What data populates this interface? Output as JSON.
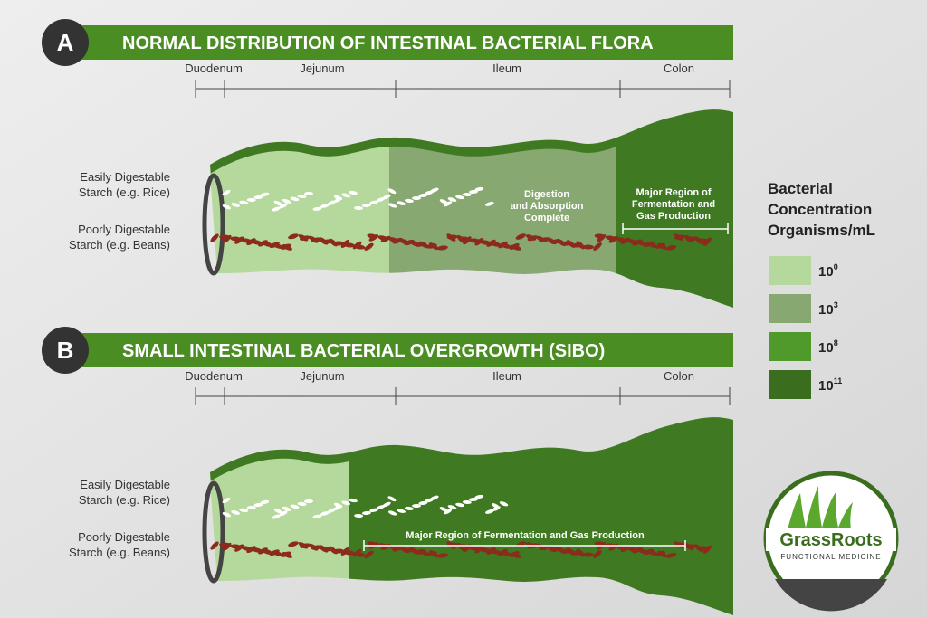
{
  "panels": [
    {
      "letter": "A",
      "title": "NORMAL DISTRIBUTION OF INTESTINAL BACTERIAL FLORA",
      "segments": [
        "Duodenum",
        "Jejunum",
        "Ileum",
        "Colon"
      ],
      "rice_label": [
        "Easily Digestable",
        "Starch (e.g. Rice)"
      ],
      "beans_label": [
        "Poorly Digestable",
        "Starch (e.g. Beans)"
      ],
      "notes": [
        [
          "Digestion",
          "and Absorption",
          "Complete"
        ],
        [
          "Major Region of",
          "Fermentation and",
          "Gas Production"
        ]
      ]
    },
    {
      "letter": "B",
      "title": "SMALL INTESTINAL BACTERIAL OVERGROWTH  (SIBO)",
      "segments": [
        "Duodenum",
        "Jejunum",
        "Ileum",
        "Colon"
      ],
      "rice_label": [
        "Easily Digestable",
        "Starch (e.g. Rice)"
      ],
      "beans_label": [
        "Poorly Digestable",
        "Starch (e.g. Beans)"
      ],
      "notes": [
        [
          "Major Region of Fermentation and Gas Production"
        ]
      ]
    }
  ],
  "legend": {
    "title": [
      "Bacterial",
      "Concentration",
      "Organisms/mL"
    ],
    "items": [
      {
        "base": "10",
        "exponent": "0"
      },
      {
        "base": "10",
        "exponent": "3"
      },
      {
        "base": "10",
        "exponent": "8"
      },
      {
        "base": "10",
        "exponent": "11"
      }
    ]
  },
  "logo": {
    "name": "GrassRoots",
    "subtitle": "FUNCTIONAL MEDICINE"
  }
}
